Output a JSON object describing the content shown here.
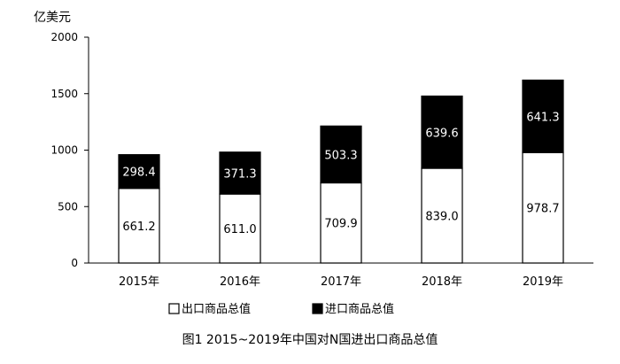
{
  "chart_data": {
    "type": "bar",
    "stacked": true,
    "title": "图1  2015~2019年中国对N国进出口商品总值",
    "ylabel": "亿美元",
    "ylim": [
      0,
      2000
    ],
    "yticks": [
      0,
      500,
      1000,
      1500,
      2000
    ],
    "categories": [
      "2015年",
      "2016年",
      "2017年",
      "2018年",
      "2019年"
    ],
    "series": [
      {
        "name": "出口商品总值",
        "values": [
          661.2,
          611.0,
          709.9,
          839.0,
          978.7
        ],
        "value_labels": [
          "661.2",
          "611.0",
          "709.9",
          "839.0",
          "978.7"
        ],
        "color": "#ffffff"
      },
      {
        "name": "进口商品总值",
        "values": [
          298.4,
          371.3,
          503.3,
          639.6,
          641.3
        ],
        "value_labels": [
          "298.4",
          "371.3",
          "503.3",
          "639.6",
          "641.3"
        ],
        "color": "#000000"
      }
    ],
    "legend_position": "bottom",
    "grid": false
  }
}
